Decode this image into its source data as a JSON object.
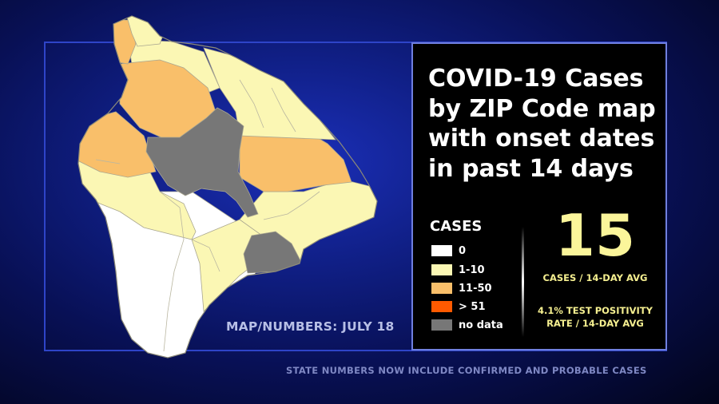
{
  "title": "COVID-19 Cases by ZIP Code map with onset dates in past 14 days",
  "map_caption": "MAP/NUMBERS: JULY 18",
  "legend": {
    "title": "CASES",
    "items": [
      {
        "label": "0",
        "color": "#ffffff"
      },
      {
        "label": "1-10",
        "color": "#fbf7b4"
      },
      {
        "label": "11-50",
        "color": "#f9bf6a"
      },
      {
        "label": "> 51",
        "color": "#ff5a00"
      },
      {
        "label": "no data",
        "color": "#777777"
      }
    ]
  },
  "stats": {
    "cases_avg": "15",
    "cases_avg_label": "CASES / 14-DAY AVG",
    "positivity_label": "4.1% TEST POSITIVITY RATE / 14-DAY AVG"
  },
  "footer_note": "STATE NUMBERS NOW INCLUDE CONFIRMED AND PROBABLE CASES",
  "map_regions": [
    {
      "zone": "north-tip",
      "category": "1-10"
    },
    {
      "zone": "northwest-coast",
      "category": "11-50"
    },
    {
      "zone": "north-interior",
      "category": "1-10"
    },
    {
      "zone": "waimea-hamakua",
      "category": "11-50"
    },
    {
      "zone": "hamakua-coast",
      "category": "1-10"
    },
    {
      "zone": "west-kohala",
      "category": "11-50"
    },
    {
      "zone": "saddle-interior",
      "category": "no data"
    },
    {
      "zone": "hilo",
      "category": "11-50"
    },
    {
      "zone": "puna",
      "category": "1-10"
    },
    {
      "zone": "kona",
      "category": "1-10"
    },
    {
      "zone": "kau-upper",
      "category": "1-10"
    },
    {
      "zone": "volcano",
      "category": "no data"
    },
    {
      "zone": "south-kona-kau",
      "category": "0"
    }
  ]
}
